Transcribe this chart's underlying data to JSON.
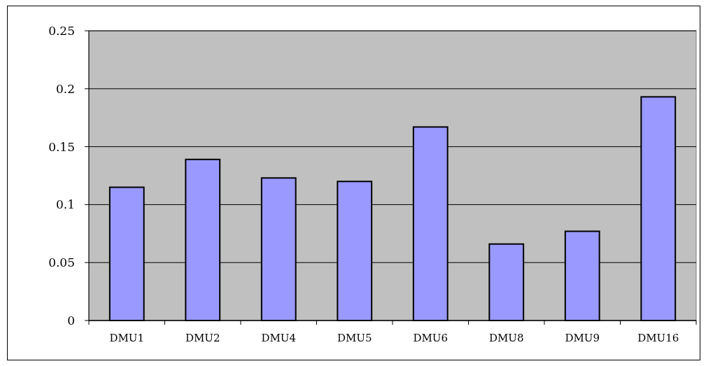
{
  "chart_data": {
    "type": "bar",
    "categories": [
      "DMU1",
      "DMU2",
      "DMU4",
      "DMU5",
      "DMU6",
      "DMU8",
      "DMU9",
      "DMU16"
    ],
    "values": [
      0.115,
      0.139,
      0.123,
      0.12,
      0.167,
      0.066,
      0.077,
      0.193
    ],
    "color": "#9999ff",
    "ylim": [
      0,
      0.25
    ],
    "yticks": [
      0,
      0.05,
      0.1,
      0.15,
      0.2,
      0.25
    ],
    "grid": "y"
  }
}
